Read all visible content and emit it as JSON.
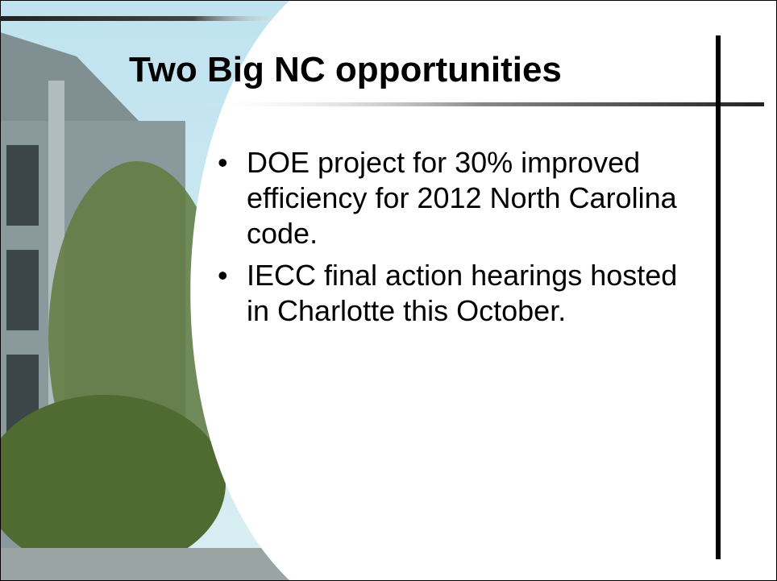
{
  "slide": {
    "title": "Two Big NC opportunities",
    "bullets": [
      "DOE project for 30% improved efficiency for 2012 North Carolina code.",
      "IECC final action hearings hosted in Charlotte this October."
    ]
  }
}
